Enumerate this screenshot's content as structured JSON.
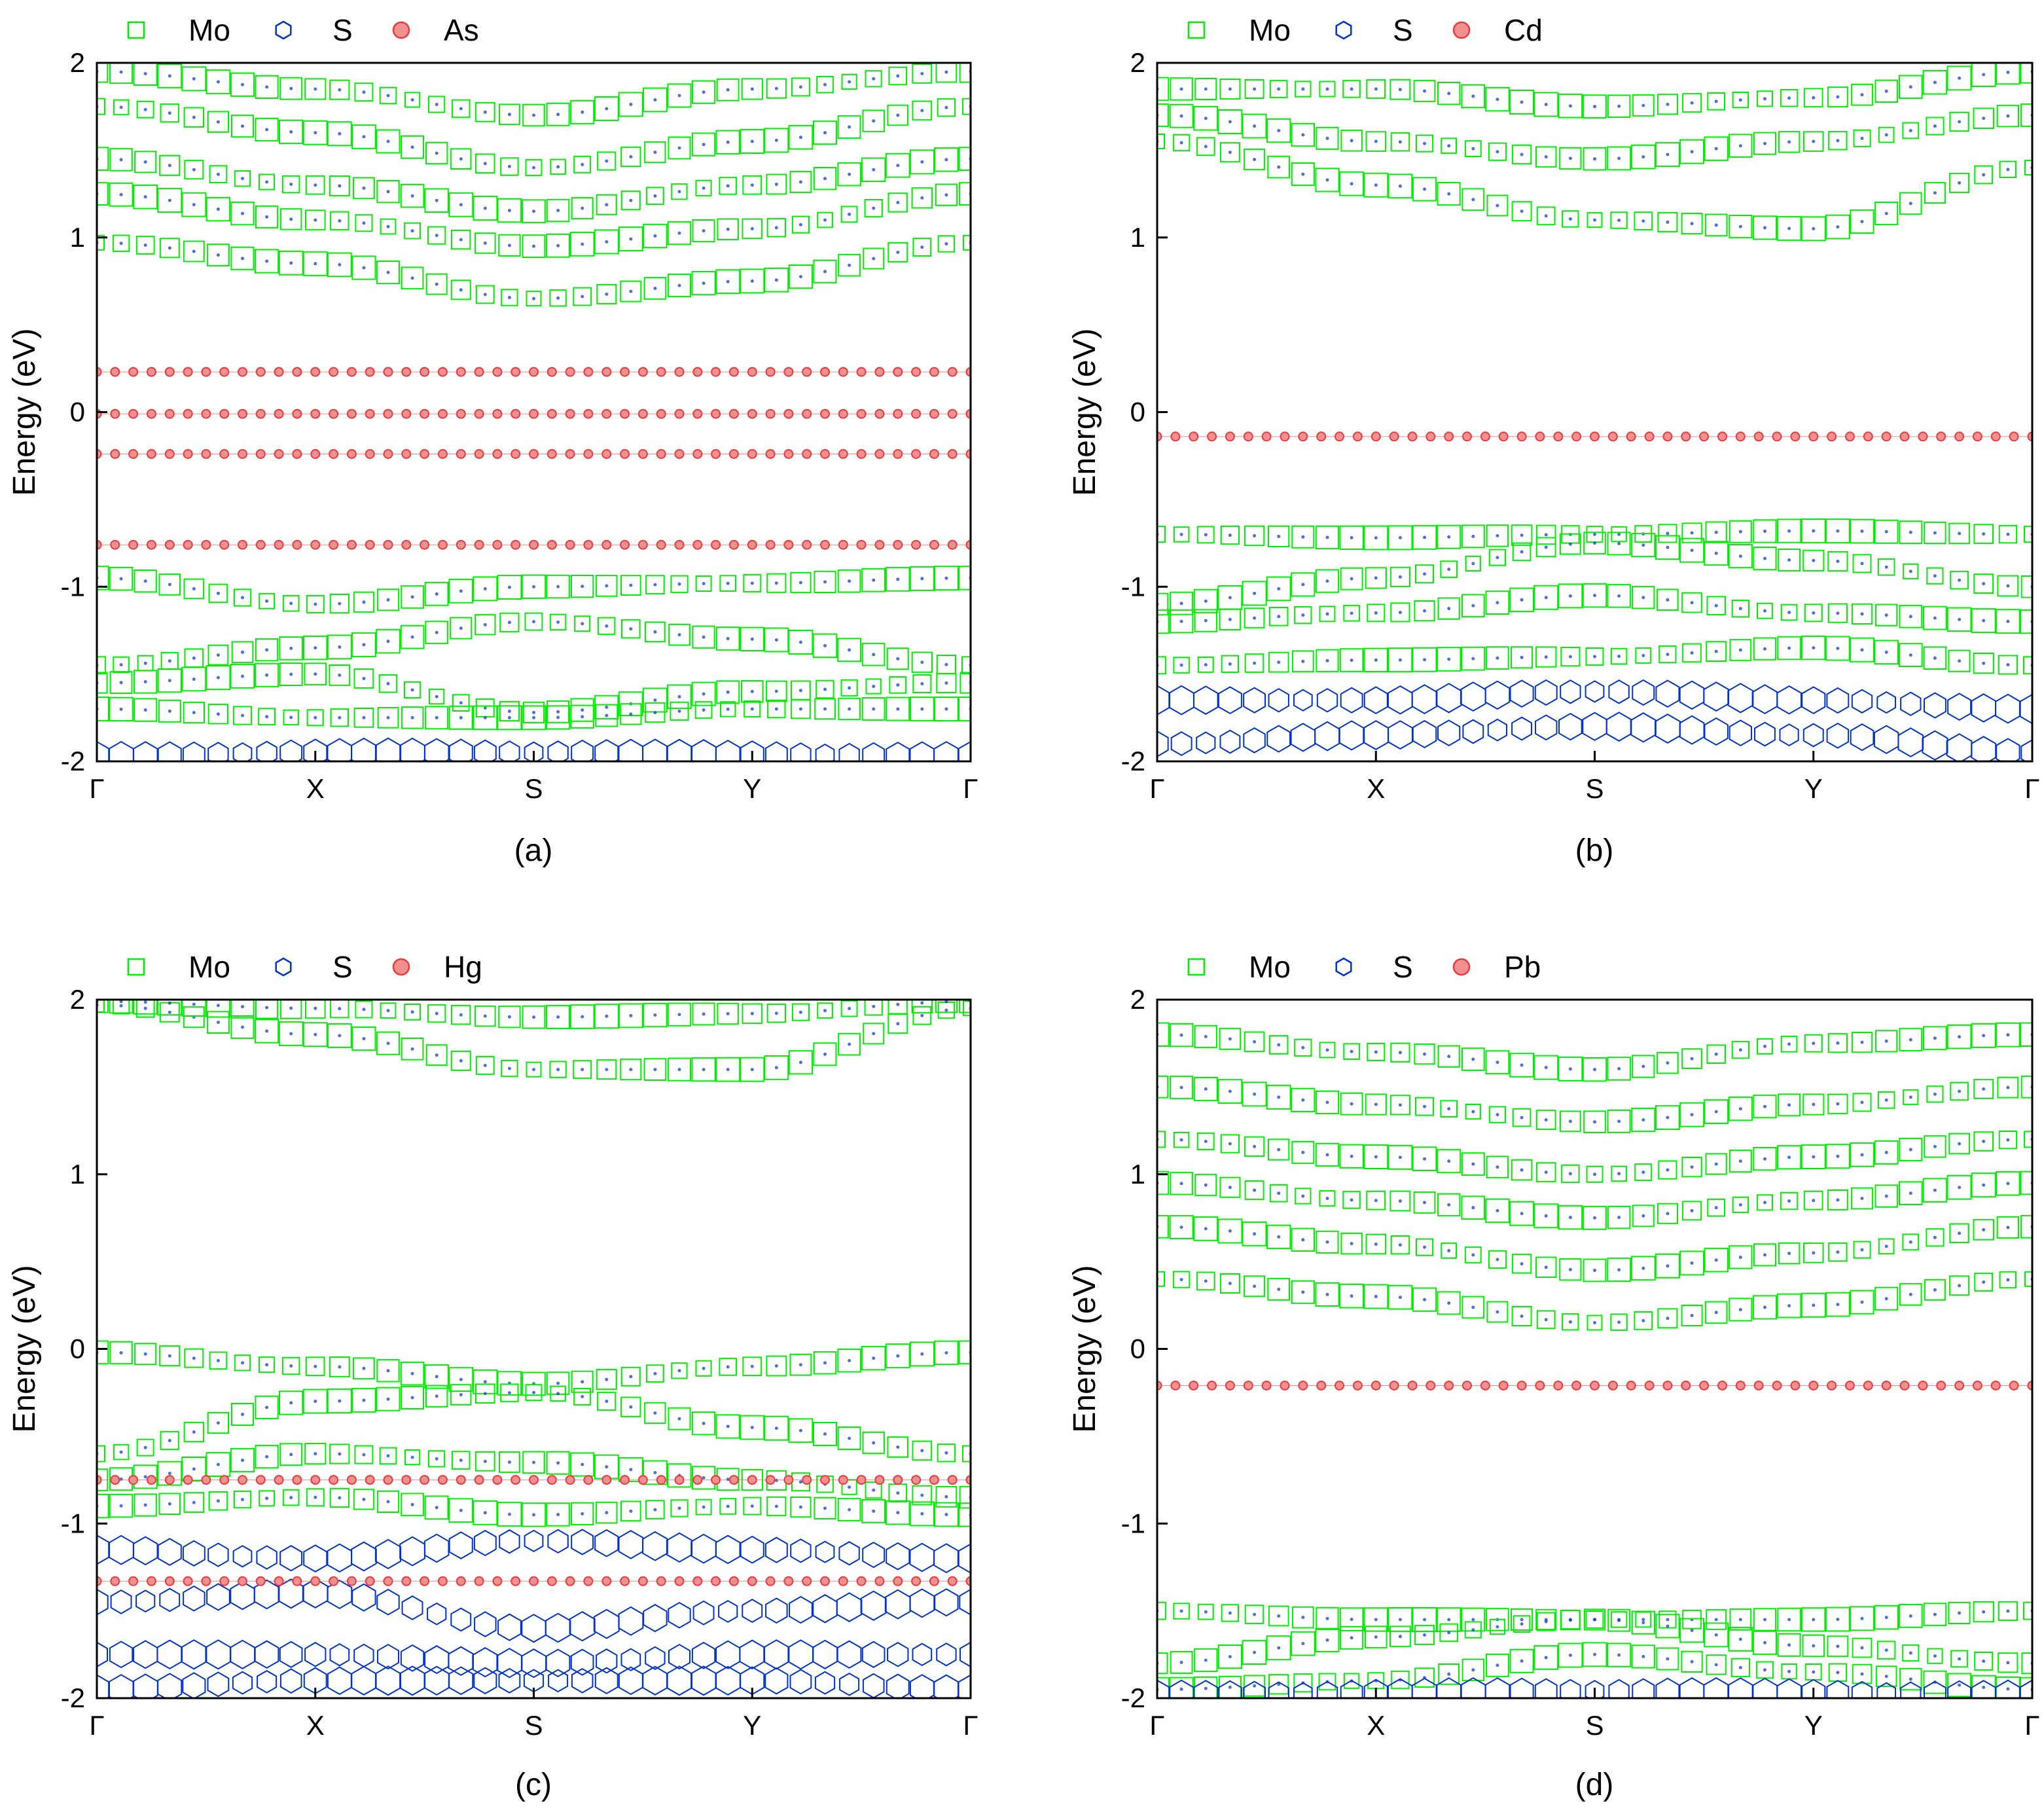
{
  "figure": {
    "layout": "2x2 grid"
  },
  "colors": {
    "Mo": "#00ee00",
    "S": "#0033cc",
    "impurity": "#e83a3a",
    "impurity_fill": "#f09090",
    "axis": "#000000"
  },
  "chart_data": [
    {
      "type": "scatter",
      "panel_label": "(a)",
      "legend": [
        "Mo",
        "S",
        "As"
      ],
      "ylabel": "Energy (eV)",
      "ylim": [
        -2,
        2
      ],
      "yticks": [
        "2",
        "1",
        "0",
        "-1",
        "-2"
      ],
      "xticks": [
        "Γ",
        "X",
        "S",
        "Y",
        "Γ"
      ],
      "impurity_levels": [
        0.23,
        -0.01,
        -0.24,
        -0.76
      ],
      "mo_conduction_bands": [
        [
          0.97,
          0.85,
          0.65,
          0.75,
          0.97
        ],
        [
          1.25,
          1.1,
          0.95,
          1.05,
          1.25
        ],
        [
          1.45,
          1.3,
          1.15,
          1.3,
          1.45
        ],
        [
          1.75,
          1.6,
          1.4,
          1.55,
          1.75
        ],
        [
          1.95,
          1.85,
          1.7,
          1.85,
          1.95
        ]
      ],
      "mo_valence_bands": [
        [
          -0.95,
          -1.1,
          -1.0,
          -0.98,
          -0.95
        ],
        [
          -1.45,
          -1.35,
          -1.2,
          -1.3,
          -1.45
        ],
        [
          -1.55,
          -1.5,
          -1.72,
          -1.6,
          -1.55
        ],
        [
          -1.7,
          -1.75,
          -1.75,
          -1.7,
          -1.7
        ]
      ],
      "s_bands": [
        [
          -1.97,
          -1.95,
          -1.95,
          -1.96,
          -1.97
        ]
      ]
    },
    {
      "type": "scatter",
      "panel_label": "(b)",
      "legend": [
        "Mo",
        "S",
        "Cd"
      ],
      "ylabel": "Energy (eV)",
      "ylim": [
        -2,
        2
      ],
      "yticks": [
        "2",
        "1",
        "0",
        "-1",
        "-2"
      ],
      "xticks": [
        "Γ",
        "X",
        "S",
        "Y",
        "Γ"
      ],
      "impurity_levels": [
        -0.14
      ],
      "mo_conduction_bands": [
        [
          1.55,
          1.3,
          1.1,
          1.05,
          1.4
        ],
        [
          1.7,
          1.55,
          1.45,
          1.55,
          1.7
        ],
        [
          1.85,
          1.85,
          1.75,
          1.8,
          1.95
        ]
      ],
      "mo_valence_bands": [
        [
          -0.7,
          -0.72,
          -0.7,
          -0.68,
          -0.7
        ],
        [
          -1.1,
          -0.95,
          -0.75,
          -0.85,
          -1.0
        ],
        [
          -1.2,
          -1.15,
          -1.05,
          -1.15,
          -1.2
        ],
        [
          -1.45,
          -1.42,
          -1.4,
          -1.35,
          -1.45
        ]
      ],
      "s_bands": [
        [
          -1.65,
          -1.65,
          -1.6,
          -1.65,
          -1.7
        ],
        [
          -1.9,
          -1.85,
          -1.8,
          -1.85,
          -1.95
        ]
      ]
    },
    {
      "type": "scatter",
      "panel_label": "(c)",
      "legend": [
        "Mo",
        "S",
        "Hg"
      ],
      "ylabel": "Energy (eV)",
      "ylim": [
        -2,
        2
      ],
      "yticks": [
        "2",
        "1",
        "0",
        "-1",
        "-2"
      ],
      "xticks": [
        "Γ",
        "X",
        "S",
        "Y",
        "Γ"
      ],
      "impurity_levels": [
        -0.75,
        -1.33
      ],
      "mo_conduction_bands": [
        [
          1.97,
          1.8,
          1.6,
          1.6,
          1.95
        ],
        [
          1.99,
          1.95,
          1.9,
          1.92,
          1.99
        ]
      ],
      "mo_valence_bands": [
        [
          -0.02,
          -0.1,
          -0.2,
          -0.1,
          -0.02
        ],
        [
          -0.6,
          -0.3,
          -0.25,
          -0.45,
          -0.6
        ],
        [
          -0.75,
          -0.6,
          -0.65,
          -0.75,
          -0.85
        ],
        [
          -0.9,
          -0.85,
          -0.95,
          -0.9,
          -0.95
        ]
      ],
      "s_bands": [
        [
          -1.15,
          -1.2,
          -1.1,
          -1.15,
          -1.2
        ],
        [
          -1.45,
          -1.4,
          -1.6,
          -1.5,
          -1.45
        ],
        [
          -1.75,
          -1.75,
          -1.8,
          -1.75,
          -1.75
        ],
        [
          -1.95,
          -1.9,
          -1.9,
          -1.9,
          -1.95
        ]
      ]
    },
    {
      "type": "scatter",
      "panel_label": "(d)",
      "legend": [
        "Mo",
        "S",
        "Pb"
      ],
      "ylabel": "Energy (eV)",
      "ylim": [
        -2,
        2
      ],
      "yticks": [
        "2",
        "1",
        "0",
        "-1",
        "-2"
      ],
      "xticks": [
        "Γ",
        "X",
        "S",
        "Y",
        "Γ"
      ],
      "impurity_levels": [
        -0.21
      ],
      "mo_conduction_bands": [
        [
          0.4,
          0.3,
          0.15,
          0.25,
          0.4
        ],
        [
          0.7,
          0.6,
          0.45,
          0.55,
          0.7
        ],
        [
          0.95,
          0.85,
          0.75,
          0.85,
          0.95
        ],
        [
          1.2,
          1.1,
          1.0,
          1.1,
          1.2
        ],
        [
          1.5,
          1.4,
          1.3,
          1.4,
          1.5
        ],
        [
          1.8,
          1.7,
          1.6,
          1.75,
          1.8
        ]
      ],
      "mo_valence_bands": [
        [
          -1.5,
          -1.55,
          -1.55,
          -1.55,
          -1.5
        ],
        [
          -1.8,
          -1.65,
          -1.55,
          -1.7,
          -1.8
        ],
        [
          -1.95,
          -1.9,
          -1.75,
          -1.85,
          -1.95
        ]
      ],
      "s_bands": [
        [
          -1.98,
          -1.97,
          -1.96,
          -1.97,
          -1.98
        ]
      ]
    }
  ]
}
